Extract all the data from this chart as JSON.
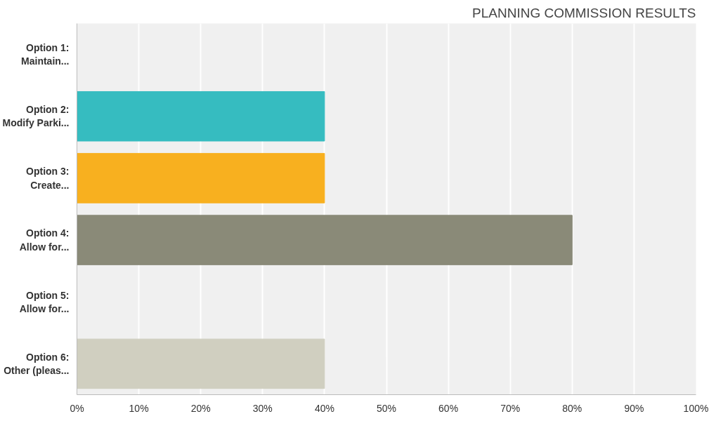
{
  "chart_data": {
    "type": "bar",
    "orientation": "horizontal",
    "title": "PLANNING COMMISSION RESULTS",
    "categories": [
      "Option 1:\nMaintain...",
      "Option 2:\nModify Parki...",
      "Option 3:\nCreate...",
      "Option 4:\nAllow for...",
      "Option 5:\nAllow for...",
      "Option 6:\nOther (pleas..."
    ],
    "values": [
      0,
      40,
      40,
      80,
      0,
      40
    ],
    "colors": [
      "#4f81bd",
      "#36bcc0",
      "#f8b01f",
      "#8a8a78",
      "#c0504d",
      "#d0cfc0"
    ],
    "xlim": [
      0,
      100
    ],
    "xticks": [
      {
        "value": 0,
        "label": "0%"
      },
      {
        "value": 10,
        "label": "10%"
      },
      {
        "value": 20,
        "label": "20%"
      },
      {
        "value": 30,
        "label": "30%"
      },
      {
        "value": 40,
        "label": "40%"
      },
      {
        "value": 50,
        "label": "50%"
      },
      {
        "value": 60,
        "label": "60%"
      },
      {
        "value": 70,
        "label": "70%"
      },
      {
        "value": 80,
        "label": "80%"
      },
      {
        "value": 90,
        "label": "90%"
      },
      {
        "value": 100,
        "label": "100%"
      }
    ],
    "grid": "x"
  }
}
